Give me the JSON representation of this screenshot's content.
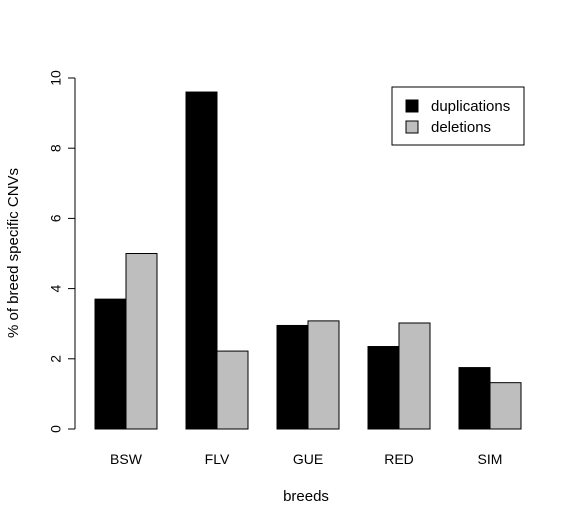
{
  "chart_data": {
    "type": "bar",
    "categories": [
      "BSW",
      "FLV",
      "GUE",
      "RED",
      "SIM"
    ],
    "series": [
      {
        "name": "duplications",
        "values": [
          3.7,
          9.6,
          2.95,
          2.35,
          1.75
        ],
        "color": "#000000"
      },
      {
        "name": "deletions",
        "values": [
          5.0,
          2.22,
          3.08,
          3.02,
          1.32
        ],
        "color": "#bebebe"
      }
    ],
    "title": "",
    "xlabel": "breeds",
    "ylabel": "% of breed specific CNVs",
    "ylim": [
      0,
      10
    ],
    "yticks": [
      0,
      2,
      4,
      6,
      8,
      10
    ],
    "ytick_labels": [
      "0",
      "2",
      "4",
      "6",
      "8",
      "10"
    ],
    "grid": false,
    "legend_position": "top-right"
  }
}
